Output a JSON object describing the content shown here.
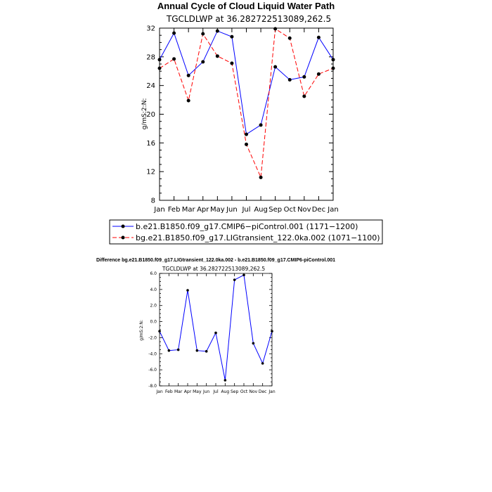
{
  "chart_data": [
    {
      "type": "line",
      "title": "Annual Cycle of Cloud Liquid Water Path",
      "subtitle": "TGCLDLWP  at  36.282722513089,262.5",
      "ylabel": "g/mS:2:N:",
      "ylim": [
        8,
        32
      ],
      "yticks": [
        "8",
        "12",
        "16",
        "20",
        "24",
        "28",
        "32"
      ],
      "categories": [
        "Jan",
        "Feb",
        "Mar",
        "Apr",
        "May",
        "Jun",
        "Jul",
        "Aug",
        "Sep",
        "Oct",
        "Nov",
        "Dec",
        "Jan"
      ],
      "grid": false,
      "legend_position": "bottom",
      "series": [
        {
          "name": "b.e21.B1850.f09_g17.CMIP6−piControl.001 (1171−1200)",
          "color": "#0000ff",
          "dash": "solid",
          "values": [
            27.6,
            31.3,
            25.4,
            27.3,
            31.6,
            30.8,
            17.2,
            18.5,
            26.6,
            24.8,
            25.2,
            30.7,
            27.6
          ]
        },
        {
          "name": "bg.e21.B1850.f09_g17.LIGtransient_122.0ka.002 (1071−1100)",
          "color": "#ff0000",
          "dash": "dashed",
          "values": [
            26.4,
            27.7,
            21.9,
            31.2,
            28.1,
            27.1,
            15.8,
            11.2,
            31.9,
            30.6,
            22.5,
            25.6,
            26.4
          ]
        }
      ]
    },
    {
      "type": "line",
      "title": "Difference bg.e21.B1850.f09_g17.LIGtransient_122.0ka.002 - b.e21.B1850.f09_g17.CMIP6-piControl.001",
      "subtitle": "TGCLDLWP  at  36.282722513089,262.5",
      "ylabel": "g/mS:2:N:",
      "ylim": [
        -8,
        6
      ],
      "yticks": [
        "-8.0",
        "-6.0",
        "-4.0",
        "-2.0",
        "0.0",
        "2.0",
        "4.0",
        "6.0"
      ],
      "categories": [
        "Jan",
        "Feb",
        "Mar",
        "Apr",
        "May",
        "Jun",
        "Jul",
        "Aug",
        "Sep",
        "Oct",
        "Nov",
        "Dec",
        "Jan"
      ],
      "grid": false,
      "series": [
        {
          "color": "#0000ff",
          "dash": "solid",
          "values": [
            -1.2,
            -3.6,
            -3.5,
            3.9,
            -3.6,
            -3.7,
            -1.4,
            -7.3,
            5.2,
            5.8,
            -2.7,
            -5.2,
            -1.2
          ]
        }
      ]
    }
  ]
}
